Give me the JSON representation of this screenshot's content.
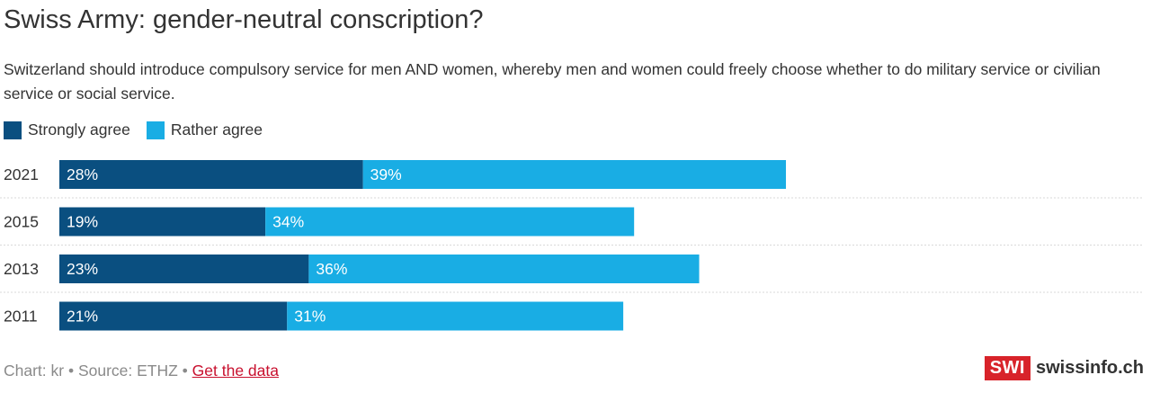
{
  "title": "Swiss Army: gender-neutral conscription?",
  "subtitle": "Switzerland should introduce compulsory service for men AND women, whereby men and women could freely choose whether to do military service or civilian service or social service.",
  "colors": {
    "strongly": "#0a4f80",
    "rather": "#19ade4"
  },
  "chart_data": {
    "type": "bar",
    "orientation": "horizontal",
    "stacked": true,
    "categories": [
      "2021",
      "2015",
      "2013",
      "2011"
    ],
    "series": [
      {
        "name": "Strongly agree",
        "values": [
          28,
          19,
          23,
          21
        ],
        "labels": [
          "28%",
          "19%",
          "23%",
          "21%"
        ]
      },
      {
        "name": "Rather agree",
        "values": [
          39,
          34,
          36,
          31
        ],
        "labels": [
          "39%",
          "34%",
          "36%",
          "31%"
        ]
      }
    ],
    "xlim": [
      0,
      100
    ],
    "legend": "top-left",
    "grid": false
  },
  "footer": {
    "credit": "Chart: kr • Source: ETHZ • ",
    "link": "Get the data"
  },
  "logo": {
    "box": "SWI",
    "text": "swissinfo.ch"
  }
}
